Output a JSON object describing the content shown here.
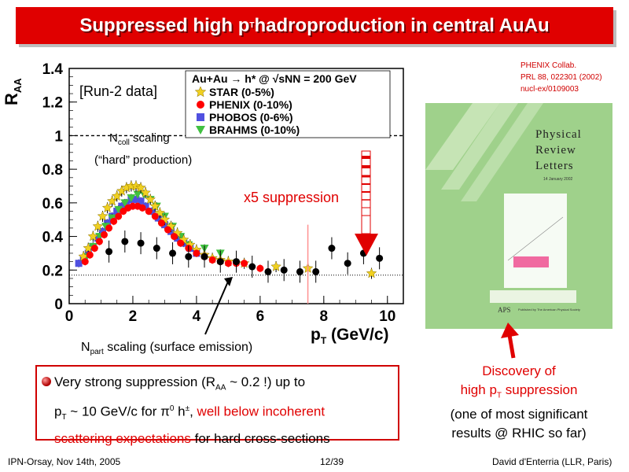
{
  "slide": {
    "title": "Suppressed high p",
    "title_sub": "T",
    "title_rest": " hadroproduction in central AuAu"
  },
  "reference": {
    "line1": "PHENIX Collab.",
    "line2": "PRL 88, 022301 (2002)",
    "line3": "nucl-ex/0109003"
  },
  "journal_cover": {
    "title_line1": "Physical",
    "title_line2": "Review",
    "title_line3": "Letters",
    "date": "14 January 2002",
    "publisher": "Published by The American Physical Society",
    "logo": "APS"
  },
  "annotations": {
    "run2": "[Run-2 data]",
    "ncoll_pre": "N",
    "ncoll_sub": "coll",
    "ncoll_post": " scaling",
    "hard": "(“hard” production)",
    "suppression": "x5 suppression",
    "npart_pre": "N",
    "npart_sub": "part",
    "npart_post": " scaling (surface emission)"
  },
  "bullet": {
    "a": "Very strong suppression (R",
    "a_sub": "AA",
    "b": " ~ 0.2 !) up to",
    "c": "p",
    "c_sub": "T",
    "d": " ~ 10 GeV/c for π",
    "d_sup": "0",
    "e": " h",
    "e_sup": "±",
    "f": ", ",
    "g_red": "well below incoherent",
    "h_red": "scattering expectations",
    "i": " for  hard cross-sections"
  },
  "discovery": {
    "line1": "Discovery of",
    "line2_pre": "high p",
    "line2_sub": "T",
    "line2_post": " suppression",
    "line3": "(one of most significant",
    "line4": "results @ RHIC so far)"
  },
  "footer": {
    "left": "IPN-Orsay, Nov 14th, 2005",
    "center": "12/39",
    "right": "David d'Enterria (LLR, Paris)"
  },
  "colors": {
    "accent_red": "#e00000",
    "star": "#f0d020",
    "phenix_pi0": "#ff0000",
    "phobos": "#5050e0",
    "brahms": "#40c040",
    "phenix_h": "#000000"
  },
  "chart_data": {
    "type": "scatter",
    "title": "Au+Au → h* @ √sNN = 200 GeV",
    "xlabel": "pT (GeV/c)",
    "ylabel": "RAA",
    "xlim": [
      0,
      10.5
    ],
    "ylim": [
      0,
      1.4
    ],
    "xticks": [
      "0",
      "2",
      "4",
      "6",
      "8",
      "10"
    ],
    "yticks": [
      "0",
      "0.2",
      "0.4",
      "0.6",
      "0.8",
      "1",
      "1.2",
      "1.4"
    ],
    "reference_lines": [
      {
        "y": 1.0,
        "label": "Ncoll scaling"
      },
      {
        "y": 0.17,
        "label": "Npart scaling"
      }
    ],
    "legend": {
      "header": "Au+Au → h* @ √sNN = 200 GeV",
      "entries": [
        "STAR (0-5%)",
        "PHENIX (0-10%)",
        "PHOBOS (0-6%)",
        "BRAHMS (0-10%)"
      ]
    },
    "series": [
      {
        "name": "STAR (0-5%)",
        "marker": "star",
        "color": "#f0d020",
        "x": [
          0.45,
          0.6,
          0.75,
          0.9,
          1.05,
          1.2,
          1.35,
          1.5,
          1.65,
          1.8,
          1.95,
          2.1,
          2.25,
          2.4,
          2.55,
          2.7,
          2.85,
          3.0,
          3.2,
          3.4,
          3.6,
          3.8,
          4.0,
          4.25,
          4.5,
          4.75,
          5.0,
          5.5,
          6.5,
          7.5,
          9.5
        ],
        "y": [
          0.28,
          0.33,
          0.4,
          0.46,
          0.52,
          0.57,
          0.61,
          0.64,
          0.67,
          0.69,
          0.7,
          0.7,
          0.69,
          0.66,
          0.62,
          0.58,
          0.54,
          0.5,
          0.46,
          0.42,
          0.38,
          0.35,
          0.32,
          0.29,
          0.27,
          0.26,
          0.25,
          0.24,
          0.22,
          0.21,
          0.18
        ]
      },
      {
        "name": "PHENIX (0-10%)",
        "marker": "circle",
        "color": "#ff0000",
        "x": [
          0.5,
          0.65,
          0.8,
          0.95,
          1.1,
          1.25,
          1.4,
          1.55,
          1.7,
          1.85,
          2.0,
          2.15,
          2.3,
          2.5,
          2.7,
          2.9,
          3.1,
          3.3,
          3.5,
          3.75,
          4.0,
          4.25,
          4.5,
          4.75,
          5.0,
          5.25,
          5.5,
          6.0
        ],
        "y": [
          0.25,
          0.29,
          0.33,
          0.37,
          0.41,
          0.45,
          0.49,
          0.52,
          0.55,
          0.57,
          0.58,
          0.58,
          0.57,
          0.55,
          0.52,
          0.48,
          0.44,
          0.4,
          0.36,
          0.33,
          0.3,
          0.28,
          0.26,
          0.25,
          0.24,
          0.24,
          0.24,
          0.21
        ]
      },
      {
        "name": "PHOBOS (0-6%)",
        "marker": "square",
        "color": "#5050e0",
        "x": [
          0.3,
          0.45,
          0.6,
          0.75,
          0.9,
          1.05,
          1.2,
          1.35,
          1.5,
          1.65,
          1.8,
          1.95,
          2.1,
          2.25,
          2.4,
          2.6,
          2.8,
          3.0,
          3.2,
          3.4,
          3.6,
          3.8,
          4.0
        ],
        "y": [
          0.24,
          0.26,
          0.3,
          0.34,
          0.39,
          0.43,
          0.48,
          0.52,
          0.55,
          0.58,
          0.6,
          0.62,
          0.62,
          0.61,
          0.58,
          0.55,
          0.51,
          0.47,
          0.43,
          0.39,
          0.36,
          0.33,
          0.3
        ]
      },
      {
        "name": "BRAHMS (0-10%)",
        "marker": "triangle",
        "color": "#40c040",
        "x": [
          0.55,
          0.75,
          0.95,
          1.15,
          1.35,
          1.55,
          1.75,
          1.95,
          2.15,
          2.35,
          2.55,
          2.75,
          3.0,
          3.25,
          3.5,
          3.75,
          4.25,
          4.75
        ],
        "y": [
          0.28,
          0.34,
          0.4,
          0.46,
          0.51,
          0.56,
          0.6,
          0.63,
          0.65,
          0.65,
          0.62,
          0.58,
          0.52,
          0.46,
          0.4,
          0.35,
          0.33,
          0.3
        ]
      },
      {
        "name": "",
        "marker": "circle",
        "color": "#000000",
        "x": [
          1.25,
          1.75,
          2.25,
          2.75,
          3.25,
          3.75,
          4.25,
          4.75,
          5.25,
          5.75,
          6.25,
          6.75,
          7.25,
          7.75,
          8.25,
          8.75,
          9.25,
          9.75
        ],
        "y": [
          0.31,
          0.37,
          0.36,
          0.33,
          0.3,
          0.28,
          0.28,
          0.25,
          0.25,
          0.22,
          0.19,
          0.2,
          0.19,
          0.19,
          0.33,
          0.24,
          0.3,
          0.27
        ]
      }
    ]
  }
}
